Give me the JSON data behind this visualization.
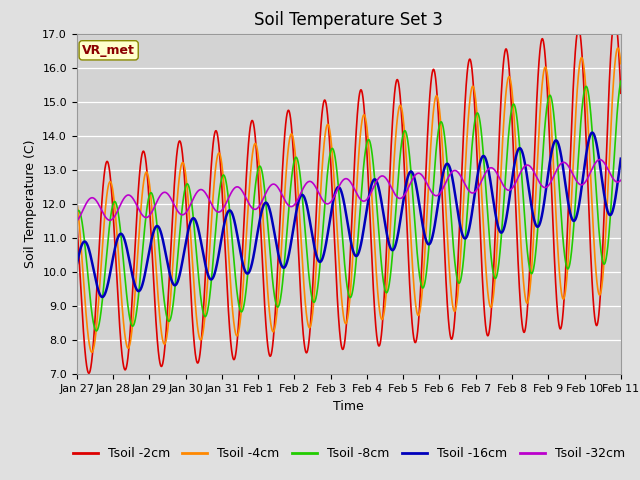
{
  "title": "Soil Temperature Set 3",
  "xlabel": "Time",
  "ylabel": "Soil Temperature (C)",
  "ylim": [
    7.0,
    17.0
  ],
  "yticks": [
    7.0,
    8.0,
    9.0,
    10.0,
    11.0,
    12.0,
    13.0,
    14.0,
    15.0,
    16.0,
    17.0
  ],
  "bg_color": "#e0e0e0",
  "plot_bg_color": "#d3d3d3",
  "grid_color": "#ffffff",
  "annotation_text": "VR_met",
  "annotation_bg": "#ffffcc",
  "annotation_border": "#888800",
  "lines": [
    {
      "label": "Tsoil -2cm",
      "color": "#dd0000",
      "lw": 1.2
    },
    {
      "label": "Tsoil -4cm",
      "color": "#ff8800",
      "lw": 1.2
    },
    {
      "label": "Tsoil -8cm",
      "color": "#22cc00",
      "lw": 1.2
    },
    {
      "label": "Tsoil -16cm",
      "color": "#0000bb",
      "lw": 1.8
    },
    {
      "label": "Tsoil -32cm",
      "color": "#bb00cc",
      "lw": 1.2
    }
  ],
  "xtick_labels": [
    "Jan 27",
    "Jan 28",
    "Jan 29",
    "Jan 30",
    "Jan 31",
    "Feb 1",
    "Feb 2",
    "Feb 3",
    "Feb 4",
    "Feb 5",
    "Feb 6",
    "Feb 7",
    "Feb 8",
    "Feb 9",
    "Feb 10",
    "Feb 11"
  ],
  "xtick_positions": [
    0,
    24,
    48,
    72,
    96,
    120,
    144,
    168,
    192,
    216,
    240,
    264,
    288,
    312,
    336,
    360
  ],
  "title_fontsize": 12,
  "tick_fontsize": 8,
  "label_fontsize": 9,
  "legend_fontsize": 9
}
